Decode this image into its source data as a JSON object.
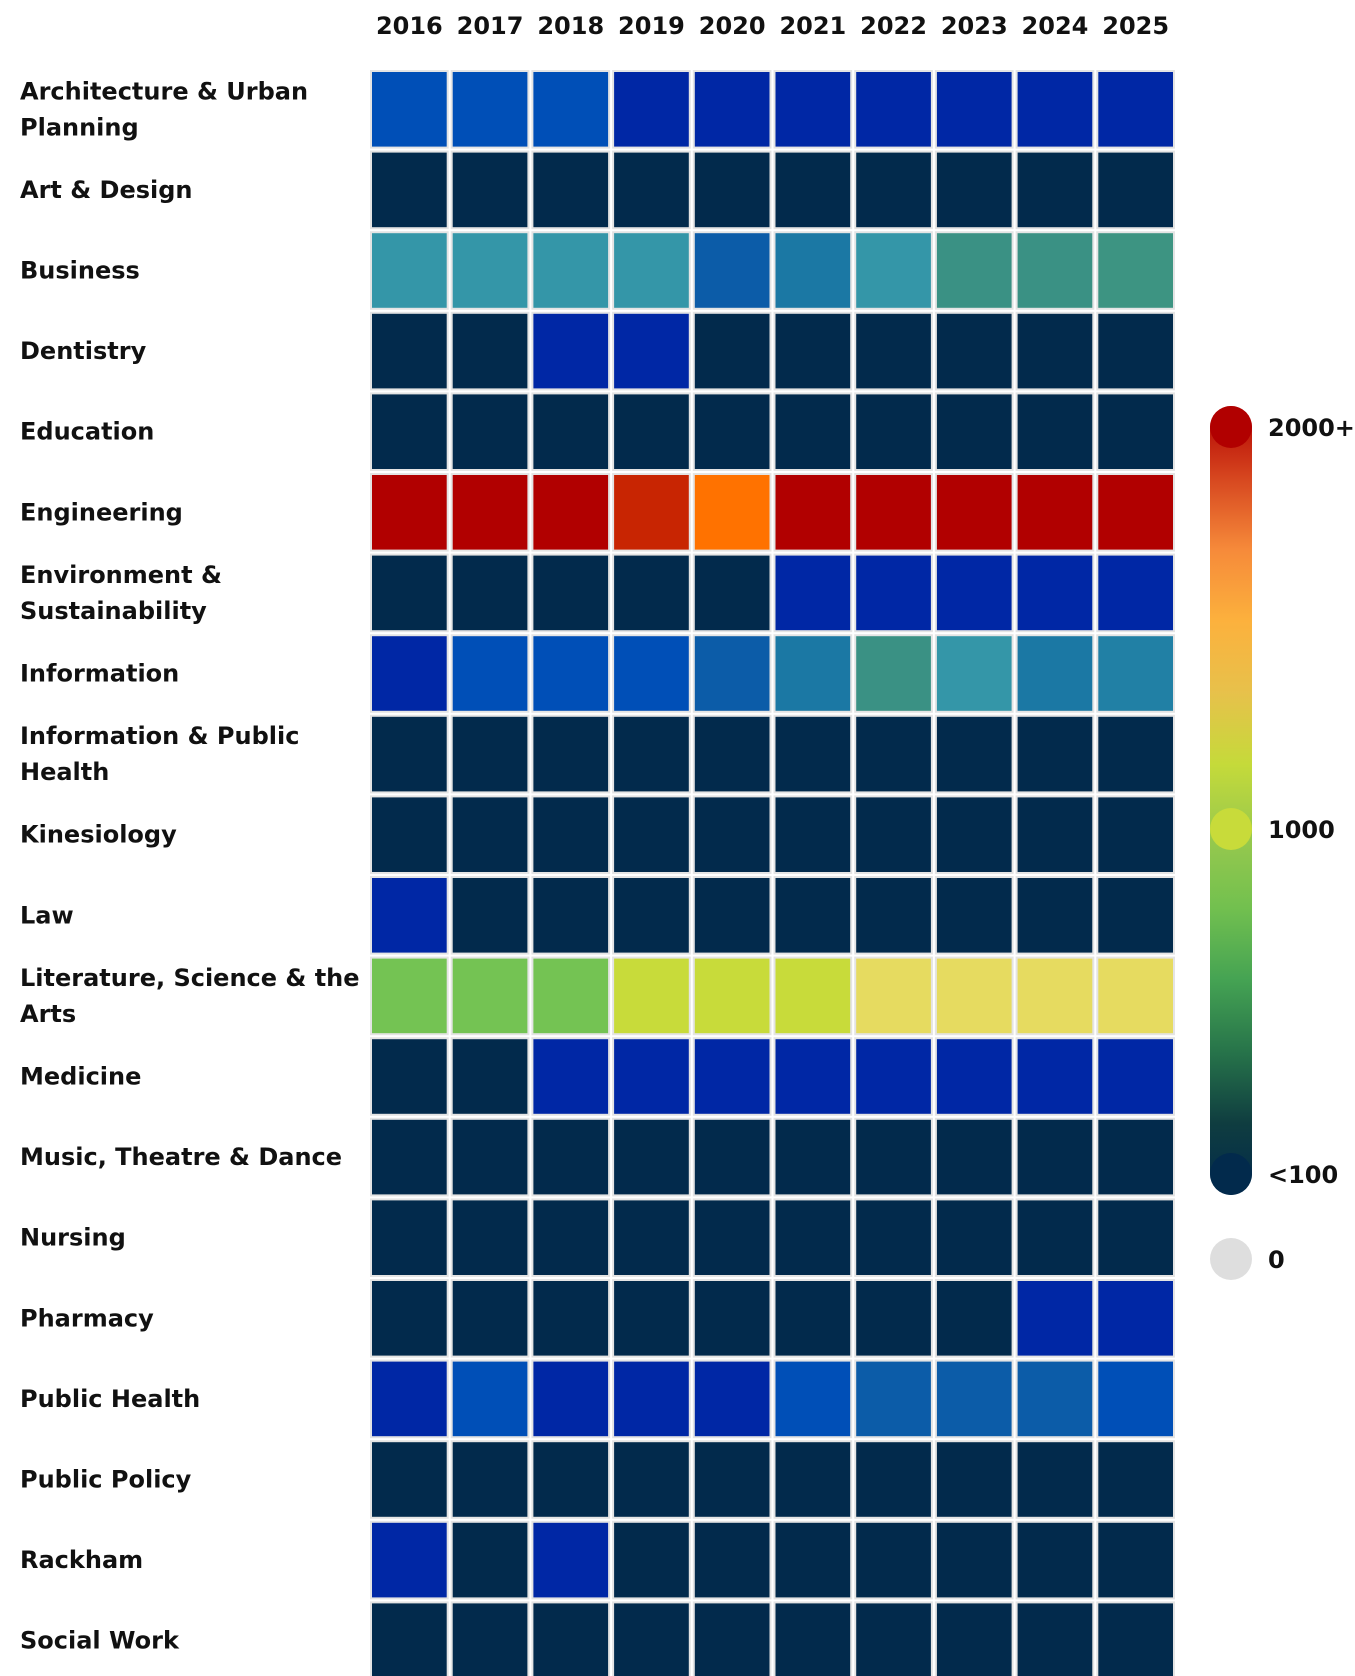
{
  "chart_data": {
    "type": "heatmap",
    "title": "",
    "x": [
      "2016",
      "2017",
      "2018",
      "2019",
      "2020",
      "2021",
      "2022",
      "2023",
      "2024",
      "2025"
    ],
    "rows": [
      {
        "label": [
          "Architecture & Urban",
          "Planning"
        ],
        "values": [
          400,
          400,
          400,
          300,
          300,
          300,
          300,
          300,
          300,
          300
        ]
      },
      {
        "label": [
          "Art & Design"
        ],
        "values": [
          100,
          100,
          100,
          100,
          100,
          100,
          100,
          100,
          100,
          100
        ]
      },
      {
        "label": [
          "Business"
        ],
        "values": [
          600,
          600,
          600,
          600,
          450,
          520,
          600,
          650,
          650,
          660
        ]
      },
      {
        "label": [
          "Dentistry"
        ],
        "values": [
          100,
          100,
          300,
          300,
          100,
          100,
          100,
          100,
          100,
          100
        ]
      },
      {
        "label": [
          "Education"
        ],
        "values": [
          100,
          100,
          100,
          100,
          100,
          100,
          100,
          100,
          100,
          100
        ]
      },
      {
        "label": [
          "Engineering"
        ],
        "values": [
          2000,
          2000,
          2000,
          1880,
          1650,
          2000,
          2000,
          2000,
          2000,
          2000
        ]
      },
      {
        "label": [
          "Environment &",
          "Sustainability"
        ],
        "values": [
          100,
          100,
          100,
          100,
          100,
          300,
          300,
          300,
          300,
          300
        ]
      },
      {
        "label": [
          "Information"
        ],
        "values": [
          300,
          400,
          400,
          400,
          450,
          520,
          650,
          600,
          520,
          540
        ]
      },
      {
        "label": [
          "Information & Public",
          "Health"
        ],
        "values": [
          100,
          100,
          100,
          100,
          100,
          100,
          100,
          100,
          100,
          100
        ]
      },
      {
        "label": [
          "Kinesiology"
        ],
        "values": [
          100,
          100,
          100,
          100,
          100,
          100,
          100,
          100,
          100,
          100
        ]
      },
      {
        "label": [
          "Law"
        ],
        "values": [
          300,
          100,
          100,
          100,
          100,
          100,
          100,
          100,
          100,
          100
        ]
      },
      {
        "label": [
          "Literature, Science & the",
          "Arts"
        ],
        "values": [
          850,
          850,
          850,
          1000,
          1000,
          1000,
          1200,
          1200,
          1200,
          1200
        ]
      },
      {
        "label": [
          "Medicine"
        ],
        "values": [
          100,
          100,
          300,
          300,
          300,
          300,
          300,
          300,
          300,
          300
        ]
      },
      {
        "label": [
          "Music, Theatre & Dance"
        ],
        "values": [
          100,
          100,
          100,
          100,
          100,
          100,
          100,
          100,
          100,
          100
        ]
      },
      {
        "label": [
          "Nursing"
        ],
        "values": [
          100,
          100,
          100,
          100,
          100,
          100,
          100,
          100,
          100,
          100
        ]
      },
      {
        "label": [
          "Pharmacy"
        ],
        "values": [
          100,
          100,
          100,
          100,
          100,
          100,
          100,
          100,
          300,
          300
        ]
      },
      {
        "label": [
          "Public Health"
        ],
        "values": [
          300,
          400,
          300,
          300,
          300,
          400,
          450,
          450,
          450,
          400
        ]
      },
      {
        "label": [
          "Public Policy"
        ],
        "values": [
          100,
          100,
          100,
          100,
          100,
          100,
          100,
          100,
          100,
          100
        ]
      },
      {
        "label": [
          "Rackham"
        ],
        "values": [
          300,
          100,
          300,
          100,
          100,
          100,
          100,
          100,
          100,
          100
        ]
      },
      {
        "label": [
          "Social Work"
        ],
        "values": [
          100,
          100,
          100,
          100,
          100,
          100,
          100,
          100,
          100,
          100
        ]
      }
    ],
    "colorscale": {
      "labels": [
        "2000+",
        "1000",
        "<100",
        "0"
      ],
      "stops": [
        {
          "value": 100,
          "color": "#022a4c"
        },
        {
          "value": 300,
          "color": "#0027a5"
        },
        {
          "value": 400,
          "color": "#004fb7"
        },
        {
          "value": 450,
          "color": "#0c5ca8"
        },
        {
          "value": 520,
          "color": "#1b78a4"
        },
        {
          "value": 600,
          "color": "#3496a8"
        },
        {
          "value": 650,
          "color": "#3a9184"
        },
        {
          "value": 850,
          "color": "#74c353"
        },
        {
          "value": 1000,
          "color": "#c8db3a"
        },
        {
          "value": 1200,
          "color": "#e6db60"
        },
        {
          "value": 1650,
          "color": "#ff7200"
        },
        {
          "value": 1880,
          "color": "#c82502"
        },
        {
          "value": 2000,
          "color": "#b10000"
        }
      ],
      "gradient": [
        "#b10000",
        "#d6461f",
        "#f68a3a",
        "#fcb13d",
        "#e7c14b",
        "#c5da3a",
        "#98c94d",
        "#72c04f",
        "#45a353",
        "#27744a",
        "#0f3d40",
        "#022a4c"
      ],
      "zero_color": "#dedede",
      "low_value_label": "<100",
      "high_value_label": "2000+"
    }
  }
}
